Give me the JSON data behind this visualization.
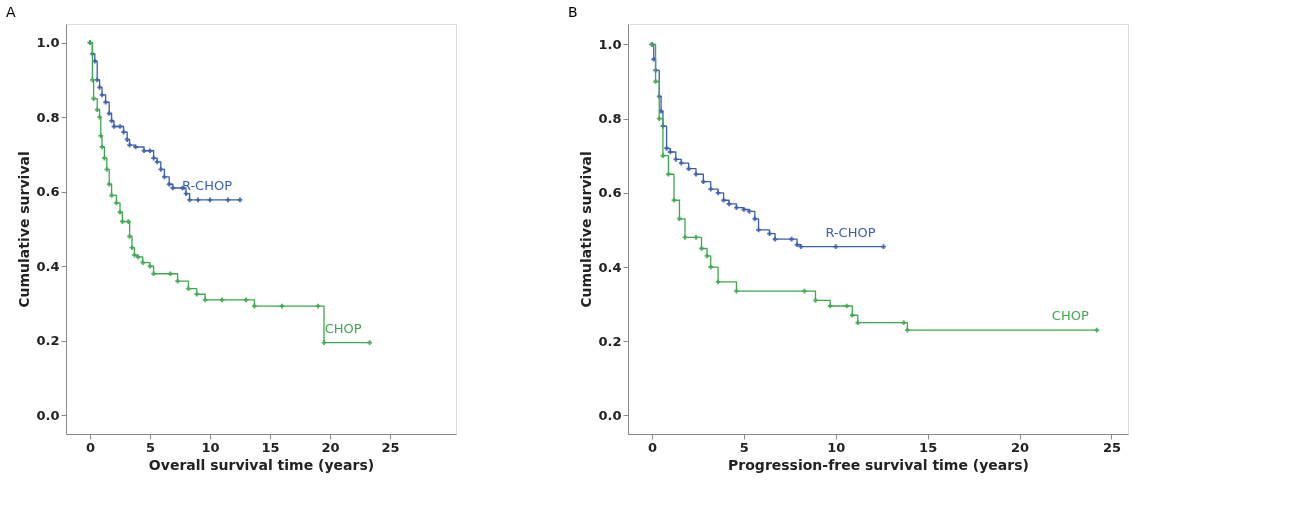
{
  "chart_data": [
    {
      "type": "step",
      "title": "A",
      "xlabel": "Overall survival time (years)",
      "ylabel": "Cumulative survival",
      "xlim": [
        -2,
        30.5
      ],
      "ylim": [
        -0.05,
        1.05
      ],
      "xticks": [
        0,
        5,
        10,
        15,
        20,
        25
      ],
      "yticks": [
        {
          "value": 0,
          "label": "0.0"
        },
        {
          "value": 0.2,
          "label": "0.2"
        },
        {
          "value": 0.4,
          "label": "0.4"
        },
        {
          "value": 0.6,
          "label": "0.6"
        },
        {
          "value": 0.8,
          "label": "0.8"
        },
        {
          "value": 1,
          "label": "1.0"
        }
      ],
      "grid": false,
      "marker": "cross",
      "line_style": "solid",
      "series": [
        {
          "name": "R-CHOP",
          "color": "#3a5fb0",
          "x": [
            0,
            0.2,
            0.4,
            0.6,
            0.8,
            1.0,
            1.3,
            1.6,
            1.8,
            2.0,
            2.5,
            2.8,
            3.1,
            3.3,
            3.8,
            4.5,
            5.0,
            5.3,
            5.6,
            5.9,
            6.2,
            6.6,
            6.9,
            7.7,
            8.0,
            8.3,
            9.0,
            10.0,
            11.5,
            12.5
          ],
          "values": [
            1.0,
            0.97,
            0.95,
            0.9,
            0.88,
            0.86,
            0.84,
            0.81,
            0.79,
            0.775,
            0.775,
            0.76,
            0.74,
            0.725,
            0.72,
            0.71,
            0.71,
            0.69,
            0.68,
            0.66,
            0.64,
            0.62,
            0.61,
            0.61,
            0.595,
            0.578,
            0.578,
            0.578,
            0.578,
            0.578
          ]
        },
        {
          "name": "CHOP",
          "color": "#3ea84f",
          "x": [
            0,
            0.2,
            0.3,
            0.6,
            0.8,
            0.9,
            1.0,
            1.2,
            1.4,
            1.6,
            1.8,
            2.2,
            2.5,
            2.7,
            3.2,
            3.3,
            3.5,
            3.7,
            4.0,
            4.4,
            5.0,
            5.3,
            6.7,
            7.3,
            8.2,
            8.9,
            9.6,
            11,
            13.0,
            13.7,
            16,
            19.0,
            19.5,
            23.3
          ],
          "values": [
            1.0,
            0.9,
            0.85,
            0.82,
            0.8,
            0.75,
            0.72,
            0.69,
            0.66,
            0.62,
            0.59,
            0.57,
            0.545,
            0.52,
            0.52,
            0.48,
            0.45,
            0.43,
            0.425,
            0.41,
            0.4,
            0.38,
            0.38,
            0.36,
            0.34,
            0.325,
            0.31,
            0.31,
            0.31,
            0.293,
            0.293,
            0.293,
            0.195,
            0.195
          ]
        }
      ]
    },
    {
      "type": "step",
      "title": "B",
      "xlabel": "Progression-free survival time (years)",
      "ylabel": "Cumulative survival",
      "xlim": [
        -1.3,
        25.9
      ],
      "ylim": [
        -0.05,
        1.055
      ],
      "xticks": [
        0,
        5,
        10,
        15,
        20,
        25
      ],
      "yticks": [
        {
          "value": 0,
          "label": "0.0"
        },
        {
          "value": 0.2,
          "label": "0.2"
        },
        {
          "value": 0.4,
          "label": "0.4"
        },
        {
          "value": 0.6,
          "label": "0.6"
        },
        {
          "value": 0.8,
          "label": "0.8"
        },
        {
          "value": 1,
          "label": "1.0"
        }
      ],
      "grid": false,
      "marker": "cross",
      "line_style": "solid",
      "series": [
        {
          "name": "R-CHOP",
          "color": "#3a5fb0",
          "x": [
            0,
            0.1,
            0.2,
            0.4,
            0.5,
            0.6,
            0.8,
            1.0,
            1.3,
            1.6,
            2.0,
            2.4,
            2.8,
            3.2,
            3.6,
            3.9,
            4.2,
            4.6,
            5.0,
            5.3,
            5.6,
            5.8,
            6.4,
            6.7,
            7.6,
            7.9,
            8.1,
            10,
            12.6
          ],
          "values": [
            1.0,
            0.96,
            0.93,
            0.86,
            0.82,
            0.78,
            0.72,
            0.71,
            0.69,
            0.68,
            0.665,
            0.65,
            0.63,
            0.61,
            0.6,
            0.58,
            0.57,
            0.56,
            0.555,
            0.55,
            0.53,
            0.5,
            0.49,
            0.475,
            0.475,
            0.46,
            0.455,
            0.455,
            0.455
          ]
        },
        {
          "name": "CHOP",
          "color": "#3ea84f",
          "x": [
            0,
            0.2,
            0.4,
            0.6,
            0.9,
            1.2,
            1.5,
            1.8,
            2.4,
            2.7,
            3.0,
            3.2,
            3.6,
            4.6,
            8.3,
            8.9,
            9.7,
            10.6,
            10.9,
            11.2,
            13.7,
            13.9,
            24.2
          ],
          "values": [
            1.0,
            0.9,
            0.8,
            0.7,
            0.65,
            0.58,
            0.53,
            0.48,
            0.48,
            0.45,
            0.43,
            0.4,
            0.36,
            0.335,
            0.335,
            0.31,
            0.295,
            0.295,
            0.27,
            0.25,
            0.25,
            0.23,
            0.23
          ]
        }
      ]
    }
  ]
}
